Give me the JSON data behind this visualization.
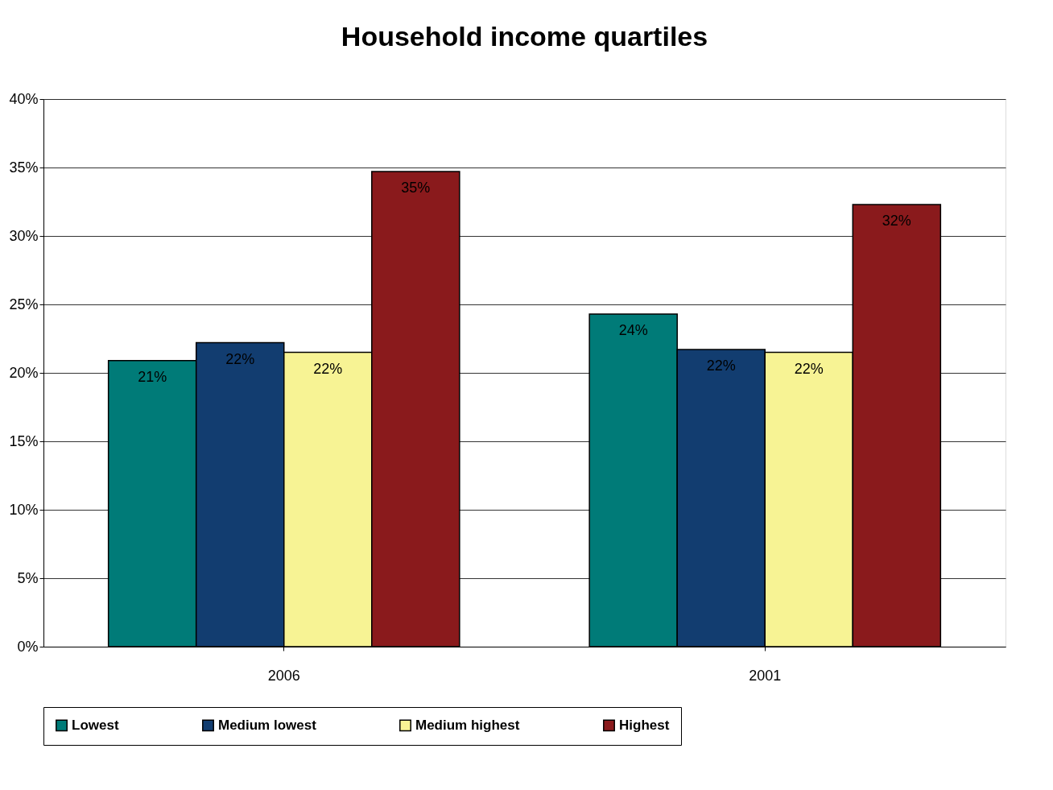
{
  "chart_data": {
    "type": "bar",
    "title": "Household income quartiles",
    "categories": [
      "2006",
      "2001"
    ],
    "series": [
      {
        "name": "Lowest",
        "color": "#007b78",
        "values": [
          20.9,
          24.3
        ],
        "value_labels": [
          "21%",
          "24%"
        ]
      },
      {
        "name": "Medium lowest",
        "color": "#123d70",
        "values": [
          22.2,
          21.7
        ],
        "value_labels": [
          "22%",
          "22%"
        ]
      },
      {
        "name": "Medium highest",
        "color": "#f7f394",
        "values": [
          21.5,
          21.5
        ],
        "value_labels": [
          "22%",
          "22%"
        ]
      },
      {
        "name": "Highest",
        "color": "#8a1a1c",
        "values": [
          34.7,
          32.3
        ],
        "value_labels": [
          "35%",
          "32%"
        ]
      }
    ],
    "ylim": [
      0,
      40
    ],
    "yticks": [
      {
        "value": 0,
        "label": "0%"
      },
      {
        "value": 5,
        "label": "5%"
      },
      {
        "value": 10,
        "label": "10%"
      },
      {
        "value": 15,
        "label": "15%"
      },
      {
        "value": 20,
        "label": "20%"
      },
      {
        "value": 25,
        "label": "25%"
      },
      {
        "value": 30,
        "label": "30%"
      },
      {
        "value": 35,
        "label": "35%"
      },
      {
        "value": 40,
        "label": "40%"
      }
    ],
    "grid": "y",
    "legend": "bottom"
  }
}
